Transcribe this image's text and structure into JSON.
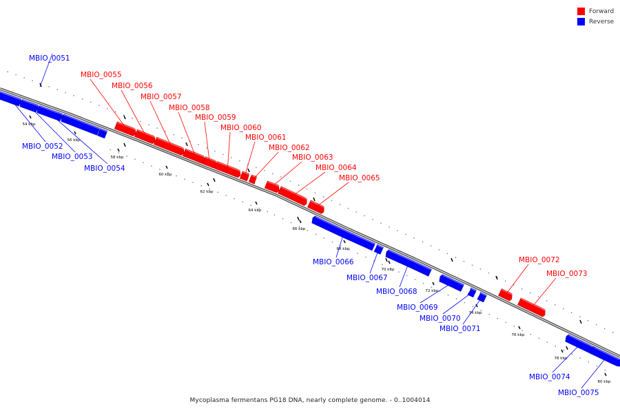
{
  "legend": {
    "forward_label": "Forward",
    "reverse_label": "Reverse",
    "forward_color": "#ff0000",
    "reverse_color": "#0000ff"
  },
  "caption": "Mycoplasma fermentans PG18 DNA, nearly complete genome. - 0..1004014",
  "scale_labels": [
    "54 kbp",
    "56 kbp",
    "58 kbp",
    "60 kbp",
    "62 kbp",
    "64 kbp",
    "66 kbp",
    "68 kbp",
    "70 kbp",
    "72 kbp",
    "74 kbp",
    "76 kbp",
    "78 kbp",
    "80 kbp"
  ],
  "genes": [
    {
      "name": "MBIO_0051",
      "strand": "reverse"
    },
    {
      "name": "MBIO_0052",
      "strand": "reverse"
    },
    {
      "name": "MBIO_0053",
      "strand": "reverse"
    },
    {
      "name": "MBIO_0054",
      "strand": "reverse"
    },
    {
      "name": "MBIO_0055",
      "strand": "forward"
    },
    {
      "name": "MBIO_0056",
      "strand": "forward"
    },
    {
      "name": "MBIO_0057",
      "strand": "forward"
    },
    {
      "name": "MBIO_0058",
      "strand": "forward"
    },
    {
      "name": "MBIO_0059",
      "strand": "forward"
    },
    {
      "name": "MBIO_0060",
      "strand": "forward"
    },
    {
      "name": "MBIO_0061",
      "strand": "forward"
    },
    {
      "name": "MBIO_0062",
      "strand": "forward"
    },
    {
      "name": "MBIO_0063",
      "strand": "forward"
    },
    {
      "name": "MBIO_0064",
      "strand": "forward"
    },
    {
      "name": "MBIO_0065",
      "strand": "forward"
    },
    {
      "name": "MBIO_0066",
      "strand": "reverse"
    },
    {
      "name": "MBIO_0067",
      "strand": "reverse"
    },
    {
      "name": "MBIO_0068",
      "strand": "reverse"
    },
    {
      "name": "MBIO_0069",
      "strand": "reverse"
    },
    {
      "name": "MBIO_0070",
      "strand": "reverse"
    },
    {
      "name": "MBIO_0071",
      "strand": "reverse"
    },
    {
      "name": "MBIO_0072",
      "strand": "forward"
    },
    {
      "name": "MBIO_0073",
      "strand": "forward"
    },
    {
      "name": "MBIO_0074",
      "strand": "reverse"
    },
    {
      "name": "MBIO_0075",
      "strand": "reverse"
    }
  ]
}
